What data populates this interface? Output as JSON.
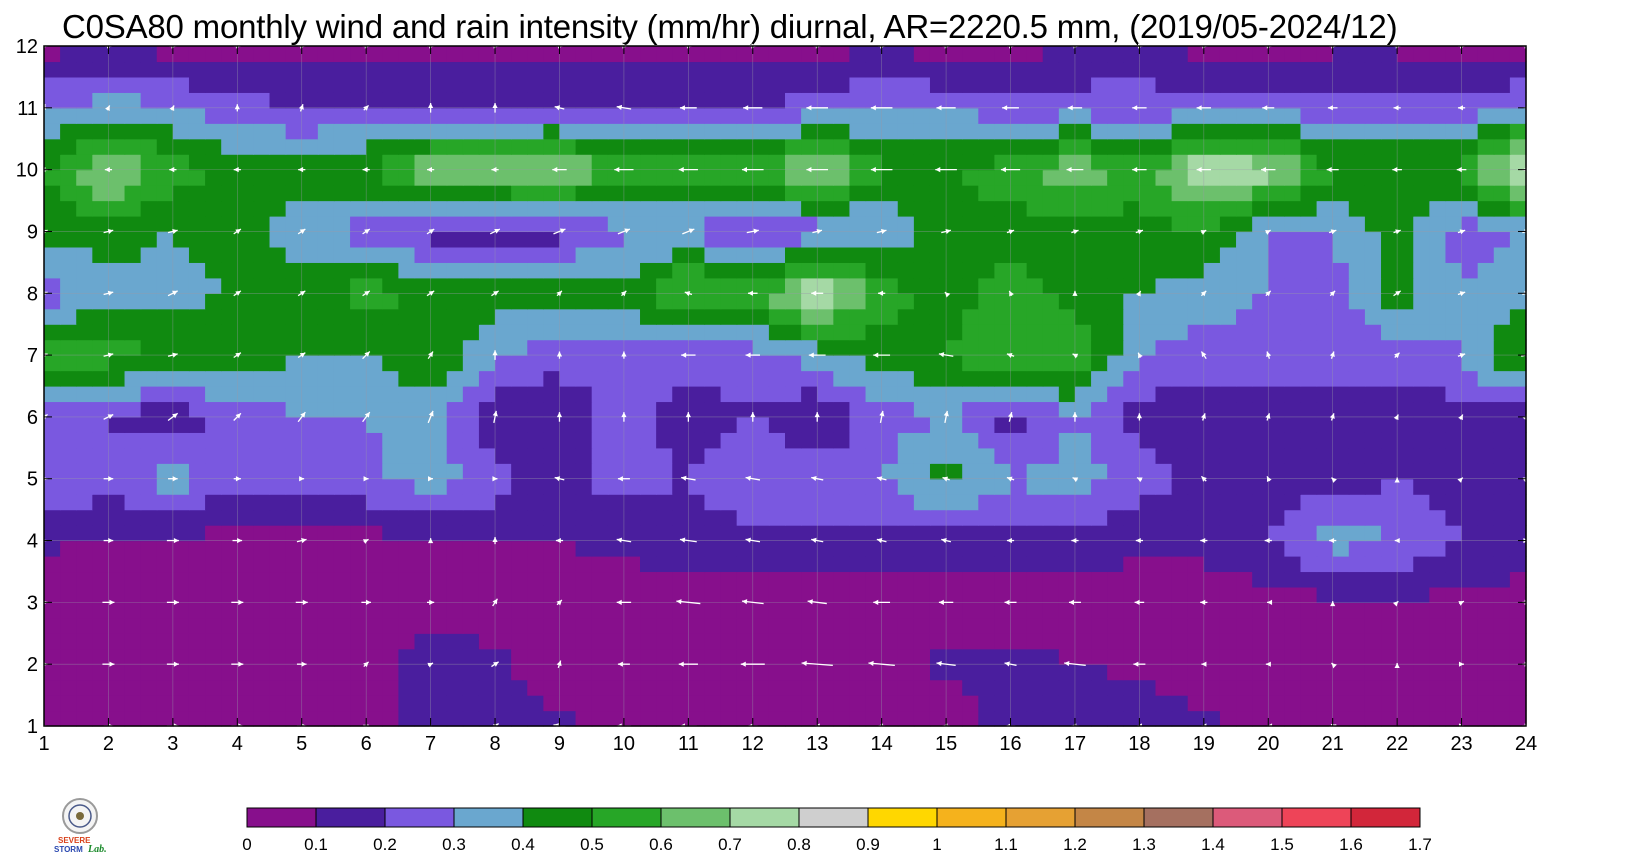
{
  "title": "C0SA80 monthly wind and rain intensity (mm/hr) diurnal, AR=2220.5 mm, (2019/05-2024/12)",
  "logo": {
    "text_a": "SEVERE",
    "text_b": "STORM",
    "text_c": "Lab."
  },
  "chart_data": {
    "type": "heatmap",
    "title": "C0SA80 monthly wind and rain intensity (mm/hr) diurnal, AR=2220.5 mm, (2019/05-2024/12)",
    "xlabel": "",
    "ylabel": "",
    "x": [
      1,
      2,
      3,
      4,
      5,
      6,
      7,
      8,
      9,
      10,
      11,
      12,
      13,
      14,
      15,
      16,
      17,
      18,
      19,
      20,
      21,
      22,
      23,
      24
    ],
    "y": [
      1,
      2,
      3,
      4,
      5,
      6,
      7,
      8,
      9,
      10,
      11,
      12
    ],
    "xlim": [
      1,
      24
    ],
    "ylim": [
      1,
      12
    ],
    "grid": true,
    "colorbar": {
      "levels": [
        "0",
        "0.1",
        "0.2",
        "0.3",
        "0.4",
        "0.5",
        "0.6",
        "0.7",
        "0.8",
        "0.9",
        "1",
        "1.1",
        "1.2",
        "1.3",
        "1.4",
        "1.5",
        "1.6",
        "1.7"
      ],
      "colors": [
        "#870f8c",
        "#4a1e9e",
        "#7a58e0",
        "#6aa7cf",
        "#108a10",
        "#27a627",
        "#6cc06c",
        "#a5d9a5",
        "#cfcfcf",
        "#ffd700",
        "#f5b21c",
        "#e6a133",
        "#c48646",
        "#a57060",
        "#dc5a7a",
        "#ee4458",
        "#d2263a"
      ]
    },
    "rain": [
      [
        0.05,
        0.05,
        0.05,
        0.07,
        0.05,
        0.05,
        0.15,
        0.15,
        0.12,
        0.08,
        0.05,
        0.05,
        0.05,
        0.05,
        0.05,
        0.15,
        0.2,
        0.15,
        0.12,
        0.08,
        0.05,
        0.05,
        0.05,
        0.05
      ],
      [
        0.05,
        0.05,
        0.05,
        0.05,
        0.05,
        0.05,
        0.15,
        0.12,
        0.05,
        0.05,
        0.05,
        0.05,
        0.05,
        0.05,
        0.12,
        0.12,
        0.1,
        0.08,
        0.05,
        0.05,
        0.05,
        0.05,
        0.05,
        0.05
      ],
      [
        0.05,
        0.05,
        0.05,
        0.05,
        0.05,
        0.05,
        0.05,
        0.05,
        0.05,
        0.05,
        0.05,
        0.05,
        0.05,
        0.05,
        0.05,
        0.05,
        0.05,
        0.05,
        0.05,
        0.05,
        0.08,
        0.08,
        0.08,
        0.05
      ],
      [
        0.12,
        0.08,
        0.1,
        0.05,
        0.05,
        0.07,
        0.08,
        0.1,
        0.1,
        0.12,
        0.15,
        0.15,
        0.18,
        0.15,
        0.15,
        0.18,
        0.15,
        0.12,
        0.12,
        0.2,
        0.35,
        0.3,
        0.2,
        0.15
      ],
      [
        0.3,
        0.25,
        0.35,
        0.22,
        0.25,
        0.28,
        0.35,
        0.25,
        0.15,
        0.25,
        0.2,
        0.3,
        0.25,
        0.3,
        0.45,
        0.3,
        0.35,
        0.25,
        0.15,
        0.15,
        0.15,
        0.2,
        0.15,
        0.12
      ],
      [
        0.25,
        0.2,
        0.12,
        0.25,
        0.3,
        0.3,
        0.35,
        0.12,
        0.1,
        0.28,
        0.12,
        0.2,
        0.1,
        0.25,
        0.3,
        0.15,
        0.3,
        0.15,
        0.15,
        0.15,
        0.15,
        0.15,
        0.15,
        0.15
      ],
      [
        0.55,
        0.55,
        0.5,
        0.45,
        0.4,
        0.4,
        0.5,
        0.3,
        0.25,
        0.25,
        0.25,
        0.25,
        0.35,
        0.45,
        0.5,
        0.6,
        0.6,
        0.3,
        0.25,
        0.25,
        0.25,
        0.25,
        0.3,
        0.55
      ],
      [
        0.25,
        0.35,
        0.35,
        0.42,
        0.45,
        0.55,
        0.45,
        0.45,
        0.48,
        0.42,
        0.65,
        0.55,
        0.82,
        0.55,
        0.45,
        0.55,
        0.45,
        0.4,
        0.35,
        0.3,
        0.25,
        0.45,
        0.3,
        0.35
      ],
      [
        0.45,
        0.45,
        0.4,
        0.45,
        0.35,
        0.25,
        0.15,
        0.15,
        0.15,
        0.3,
        0.3,
        0.15,
        0.25,
        0.3,
        0.45,
        0.45,
        0.45,
        0.45,
        0.5,
        0.3,
        0.3,
        0.45,
        0.25,
        0.3
      ],
      [
        0.5,
        0.72,
        0.55,
        0.45,
        0.45,
        0.5,
        0.7,
        0.7,
        0.75,
        0.55,
        0.55,
        0.55,
        0.75,
        0.5,
        0.5,
        0.55,
        0.7,
        0.55,
        0.8,
        0.75,
        0.5,
        0.5,
        0.5,
        0.9
      ],
      [
        0.28,
        0.35,
        0.3,
        0.25,
        0.2,
        0.2,
        0.2,
        0.2,
        0.2,
        0.2,
        0.2,
        0.2,
        0.25,
        0.3,
        0.28,
        0.25,
        0.25,
        0.25,
        0.25,
        0.25,
        0.25,
        0.25,
        0.25,
        0.3
      ],
      [
        0.05,
        0.12,
        0.05,
        0.05,
        0.05,
        0.05,
        0.05,
        0.05,
        0.05,
        0.05,
        0.05,
        0.05,
        0.05,
        0.1,
        0.05,
        0.05,
        0.1,
        0.15,
        0.05,
        0.05,
        0.08,
        0.08,
        0.05,
        0.05
      ]
    ],
    "wind_u": [
      [
        0.2,
        0.4,
        0.5,
        0.5,
        0.4,
        0.2,
        0.0,
        0.3,
        -0.5,
        -0.6,
        -0.7,
        -0.4,
        -0.2,
        -0.3,
        -0.3,
        -0.4,
        -0.3,
        -0.2,
        -0.2,
        -0.1,
        0.3,
        0.0,
        0.2,
        0.3
      ],
      [
        0.3,
        0.5,
        0.5,
        0.5,
        0.4,
        0.2,
        0.2,
        0.3,
        0.1,
        -0.5,
        -0.8,
        -1.0,
        -1.3,
        -1.1,
        -0.8,
        -0.5,
        -0.9,
        -0.5,
        -0.2,
        -0.2,
        -0.1,
        0.0,
        0.2,
        0.3
      ],
      [
        0.3,
        0.5,
        0.5,
        0.5,
        0.5,
        0.4,
        0.3,
        0.2,
        0.2,
        -0.6,
        -1.0,
        -0.9,
        -0.8,
        -0.7,
        -0.6,
        -0.5,
        -0.5,
        -0.4,
        -0.3,
        -0.1,
        0.0,
        0.1,
        0.2,
        0.3
      ],
      [
        0.2,
        0.4,
        0.5,
        0.4,
        0.4,
        0.2,
        0.0,
        0.0,
        -0.3,
        -0.6,
        -0.7,
        -0.6,
        -0.5,
        -0.4,
        -0.4,
        -0.3,
        -0.3,
        -0.3,
        -0.3,
        -0.3,
        -0.3,
        -0.2,
        0.0,
        0.2
      ],
      [
        0.3,
        0.4,
        0.4,
        0.3,
        0.2,
        0.2,
        0.2,
        0.2,
        -0.4,
        -0.5,
        -0.6,
        -0.6,
        -0.5,
        -0.4,
        -0.3,
        -0.3,
        -0.2,
        -0.2,
        -0.2,
        -0.1,
        -0.1,
        0.0,
        0.1,
        0.2
      ],
      [
        0.3,
        0.4,
        0.4,
        0.3,
        0.3,
        0.3,
        0.2,
        0.1,
        0.0,
        0.0,
        0.0,
        0.0,
        0.0,
        0.1,
        0.1,
        0.1,
        0.0,
        0.0,
        0.1,
        0.1,
        0.1,
        0.1,
        0.1,
        0.1
      ],
      [
        0.3,
        0.4,
        0.4,
        0.3,
        0.3,
        0.3,
        0.2,
        0.0,
        0.0,
        0.0,
        -0.6,
        -0.6,
        -0.7,
        -0.7,
        -0.6,
        -0.3,
        -0.2,
        -0.1,
        -0.2,
        -0.1,
        0.1,
        0.2,
        0.3,
        0.4
      ],
      [
        0.3,
        0.4,
        0.4,
        0.3,
        0.3,
        0.3,
        0.3,
        0.3,
        0.2,
        0.2,
        -0.3,
        -0.4,
        -0.5,
        -0.3,
        -0.1,
        -0.1,
        0.0,
        0.1,
        0.2,
        0.2,
        0.2,
        0.3,
        0.3,
        0.3
      ],
      [
        0.3,
        0.4,
        0.4,
        0.3,
        0.3,
        0.3,
        0.3,
        0.4,
        0.5,
        0.5,
        0.5,
        0.5,
        0.4,
        0.4,
        0.4,
        0.3,
        0.3,
        0.3,
        0.2,
        0.2,
        0.3,
        0.3,
        0.3,
        0.3
      ],
      [
        -0.3,
        -0.3,
        -0.3,
        -0.3,
        -0.3,
        -0.3,
        -0.3,
        -0.3,
        -0.6,
        -0.8,
        -0.8,
        -0.9,
        -0.9,
        -0.9,
        -0.9,
        -0.8,
        -0.7,
        -0.6,
        -0.6,
        -0.6,
        -0.5,
        -0.4,
        -0.4,
        -0.3
      ],
      [
        0.1,
        0.1,
        0.1,
        0.0,
        0.1,
        0.2,
        0.0,
        0.0,
        -0.4,
        -0.6,
        -0.7,
        -0.8,
        -0.9,
        -0.9,
        -0.8,
        -0.7,
        -0.6,
        -0.6,
        -0.6,
        -0.5,
        -0.4,
        -0.3,
        -0.3,
        -0.2
      ],
      [
        0.3,
        0.3,
        0.3,
        0.3,
        0.3,
        0.3,
        0.3,
        0.3,
        0.3,
        0.3,
        0.3,
        0.3,
        0.3,
        0.3,
        0.3,
        0.3,
        0.3,
        0.3,
        0.3,
        0.3,
        0.3,
        0.3,
        0.3,
        0.3
      ]
    ],
    "wind_v": [
      [
        0.0,
        0.0,
        0.0,
        0.0,
        0.0,
        0.1,
        0.1,
        0.2,
        0.1,
        0.0,
        0.0,
        0.0,
        0.0,
        0.0,
        0.0,
        0.0,
        0.0,
        0.0,
        0.0,
        0.0,
        0.1,
        0.0,
        0.0,
        0.0
      ],
      [
        0.0,
        0.0,
        0.0,
        0.0,
        0.0,
        0.2,
        0.1,
        0.2,
        0.3,
        0.0,
        0.0,
        0.0,
        0.1,
        0.1,
        0.1,
        0.1,
        0.1,
        0.0,
        0.0,
        0.0,
        0.1,
        0.1,
        0.0,
        0.0
      ],
      [
        0.0,
        0.0,
        0.0,
        0.0,
        0.0,
        0.0,
        0.0,
        0.3,
        0.2,
        0.0,
        0.1,
        0.1,
        0.1,
        0.0,
        0.0,
        0.0,
        0.0,
        0.0,
        0.0,
        0.0,
        0.1,
        0.1,
        0.1,
        0.0
      ],
      [
        0.0,
        0.0,
        0.0,
        0.0,
        0.1,
        0.1,
        0.2,
        0.3,
        0.0,
        0.1,
        0.1,
        0.1,
        0.1,
        0.1,
        0.1,
        0.0,
        0.0,
        0.0,
        0.0,
        0.0,
        0.0,
        0.0,
        0.0,
        0.0
      ],
      [
        0.0,
        0.0,
        0.0,
        0.0,
        0.0,
        0.0,
        0.0,
        0.0,
        0.1,
        0.0,
        0.1,
        0.1,
        0.1,
        0.1,
        0.1,
        0.1,
        0.1,
        0.1,
        0.2,
        0.2,
        0.1,
        0.1,
        0.1,
        0.1
      ],
      [
        0.2,
        0.2,
        0.3,
        0.3,
        0.4,
        0.4,
        0.5,
        0.5,
        0.4,
        0.4,
        0.4,
        0.4,
        0.4,
        0.5,
        0.5,
        0.4,
        0.4,
        0.3,
        0.3,
        0.3,
        0.3,
        0.2,
        0.2,
        0.2
      ],
      [
        0.1,
        0.1,
        0.1,
        0.2,
        0.2,
        0.3,
        0.3,
        0.4,
        0.3,
        0.3,
        0.0,
        0.0,
        0.0,
        0.0,
        0.1,
        0.1,
        0.1,
        0.2,
        0.3,
        0.3,
        0.3,
        0.2,
        0.1,
        0.1
      ],
      [
        0.1,
        0.1,
        0.2,
        0.2,
        0.2,
        0.2,
        0.2,
        0.2,
        0.2,
        0.2,
        0.1,
        0.0,
        0.0,
        0.0,
        0.1,
        0.2,
        0.2,
        0.2,
        0.2,
        0.2,
        0.2,
        0.2,
        0.1,
        0.1
      ],
      [
        0.1,
        0.1,
        0.1,
        0.2,
        0.2,
        0.2,
        0.2,
        0.2,
        0.2,
        0.2,
        0.2,
        0.1,
        0.1,
        0.1,
        0.1,
        0.1,
        0.1,
        0.1,
        0.1,
        0.1,
        0.1,
        0.1,
        0.1,
        0.1
      ],
      [
        0.0,
        0.0,
        0.0,
        0.0,
        0.0,
        0.0,
        0.0,
        0.0,
        0.0,
        0.0,
        0.0,
        0.0,
        0.0,
        0.0,
        0.0,
        0.0,
        0.0,
        0.0,
        0.0,
        0.0,
        0.0,
        0.0,
        0.0,
        0.0
      ],
      [
        0.3,
        0.2,
        0.2,
        0.3,
        0.3,
        0.2,
        0.4,
        0.4,
        0.1,
        0.1,
        0.0,
        0.0,
        0.0,
        0.0,
        0.0,
        0.0,
        0.0,
        0.0,
        0.0,
        0.0,
        0.0,
        0.0,
        0.0,
        0.0
      ],
      [
        0.0,
        0.0,
        0.0,
        0.0,
        0.0,
        0.0,
        0.0,
        0.0,
        0.0,
        0.0,
        0.0,
        0.0,
        0.0,
        0.0,
        0.0,
        0.0,
        0.0,
        0.0,
        0.0,
        0.0,
        0.0,
        0.0,
        0.0,
        0.0
      ]
    ]
  }
}
